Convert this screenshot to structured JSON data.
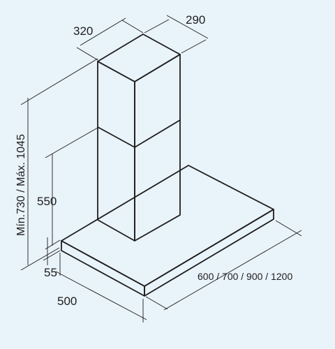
{
  "drawing": {
    "subject": "chimney cooker hood dimensions",
    "line_color": "#1e1e1e",
    "background_color": "#e9f3fa",
    "dimensions": {
      "chimney_width": "320",
      "chimney_depth": "290",
      "height_range": "Mín.730 / Máx. 1045",
      "lower_height": "550",
      "canopy_thickness": "55",
      "canopy_depth": "500",
      "hood_widths": "600 / 700 / 900 / 1200"
    }
  }
}
